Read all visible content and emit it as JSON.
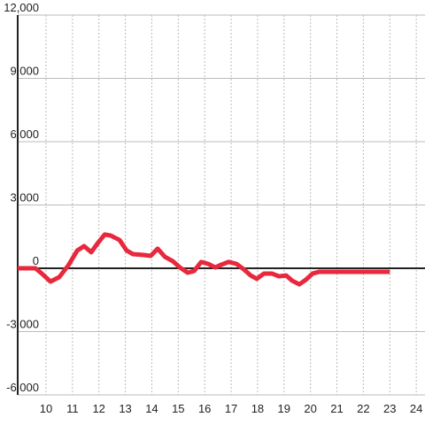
{
  "chart_data": {
    "type": "line",
    "x": [
      8.93,
      9.6,
      9.84,
      10.17,
      10.5,
      10.84,
      11.18,
      11.44,
      11.71,
      11.95,
      12.22,
      12.45,
      12.78,
      13.05,
      13.29,
      13.69,
      13.96,
      14.22,
      14.49,
      14.79,
      15.06,
      15.36,
      15.6,
      15.87,
      16.13,
      16.4,
      16.63,
      16.9,
      17.2,
      17.47,
      17.74,
      17.97,
      18.24,
      18.54,
      18.81,
      19.08,
      19.31,
      19.58,
      19.82,
      20.08,
      20.32,
      23
    ],
    "values": [
      0,
      0,
      -250,
      -630,
      -420,
      130,
      840,
      1050,
      760,
      1180,
      1600,
      1550,
      1340,
      840,
      670,
      630,
      590,
      930,
      550,
      340,
      40,
      -210,
      -130,
      300,
      210,
      40,
      170,
      300,
      210,
      -40,
      -340,
      -500,
      -250,
      -250,
      -380,
      -340,
      -590,
      -760,
      -550,
      -250,
      -170,
      -170
    ],
    "color": "#e8283c",
    "xlim": [
      8.93,
      24.33
    ],
    "xticks": [
      10,
      11,
      12,
      13,
      14,
      15,
      16,
      17,
      18,
      19,
      20,
      21,
      22,
      23,
      24
    ],
    "ylim": [
      -6000,
      12000
    ],
    "yticks": [
      {
        "value": -6000,
        "label": "-6,000"
      },
      {
        "value": -3000,
        "label": "-3,000"
      },
      0,
      {
        "value": 3000,
        "label": "3,000"
      },
      {
        "value": 6000,
        "label": "6,000"
      },
      {
        "value": 9000,
        "label": "9,000"
      },
      {
        "value": 12000,
        "label": "12,000"
      }
    ],
    "grid": true
  }
}
